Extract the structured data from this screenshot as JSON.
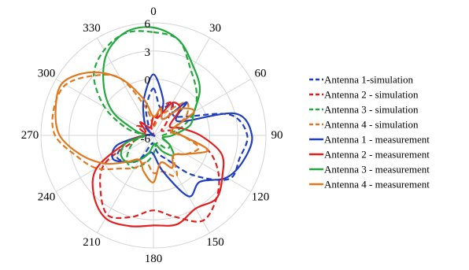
{
  "chart_data": {
    "type": "polar-line",
    "radial_axis": {
      "min": -6,
      "max": 6,
      "ticks": [
        -6,
        0,
        3,
        6
      ],
      "tick_labels": [
        "-6",
        "0",
        "3",
        "6"
      ]
    },
    "angular_axis": {
      "direction": "clockwise",
      "zero": "top",
      "ticks": [
        0,
        30,
        60,
        90,
        120,
        150,
        180,
        210,
        240,
        270,
        300,
        330
      ],
      "tick_labels": [
        "0",
        "30",
        "60",
        "90",
        "120",
        "150",
        "180",
        "210",
        "240",
        "270",
        "300",
        "330"
      ]
    },
    "grid": true,
    "legend_position": "right",
    "series": [
      {
        "name": "Antenna 1-simulation",
        "color": "#1f3fbf",
        "dash": "dashed",
        "theta": [
          0,
          15,
          30,
          45,
          60,
          75,
          90,
          105,
          120,
          135,
          150,
          165,
          180,
          195,
          210,
          225,
          240,
          255,
          270,
          285,
          300,
          315,
          330,
          345,
          360
        ],
        "r": [
          -1,
          -3,
          -2,
          -3,
          -2,
          2.5,
          4,
          3.5,
          3.3,
          0,
          -3,
          -4,
          -5,
          -5,
          -3,
          -2,
          -1.5,
          -3,
          -5,
          -6,
          -6,
          -5,
          -5,
          -3,
          -1
        ]
      },
      {
        "name": "Antenna 2 - simulation",
        "color": "#e02020",
        "dash": "dashed",
        "theta": [
          0,
          15,
          30,
          45,
          60,
          75,
          90,
          105,
          120,
          135,
          150,
          165,
          180,
          195,
          210,
          225,
          240,
          255,
          270,
          285,
          300,
          315,
          330,
          345,
          360
        ],
        "r": [
          -5,
          -3,
          -2,
          -4,
          -5,
          -4,
          -3,
          0,
          2,
          3.5,
          4.5,
          3,
          2,
          3,
          3.8,
          2,
          0,
          -4,
          -5,
          -5,
          -4,
          -5,
          -6,
          -5,
          -5
        ]
      },
      {
        "name": "Antenna 3 - simulation",
        "color": "#22a83c",
        "dash": "dashed",
        "theta": [
          0,
          15,
          30,
          45,
          60,
          75,
          90,
          105,
          120,
          135,
          150,
          165,
          180,
          195,
          210,
          225,
          240,
          255,
          270,
          285,
          300,
          315,
          330,
          345,
          360
        ],
        "r": [
          5,
          4.5,
          2,
          0.5,
          -1,
          -3,
          -5,
          -5,
          -4,
          -4,
          -5,
          -5,
          -4,
          -3,
          -2,
          -2,
          -3,
          -4,
          -5,
          -3,
          0,
          3,
          4.5,
          5.3,
          5
        ]
      },
      {
        "name": "Antenna 4 - simulation",
        "color": "#e07820",
        "dash": "dashed",
        "theta": [
          0,
          15,
          30,
          45,
          60,
          75,
          90,
          105,
          120,
          135,
          150,
          165,
          180,
          195,
          210,
          225,
          240,
          255,
          270,
          285,
          300,
          315,
          330,
          345,
          360
        ],
        "r": [
          -5,
          -4,
          -3,
          -1,
          -2,
          -4,
          -3,
          -1,
          -2,
          -3,
          -1,
          -2,
          -2,
          -3,
          -2,
          -1,
          1,
          2.5,
          4.5,
          5,
          4.8,
          3,
          1,
          -3,
          -5
        ]
      },
      {
        "name": "Antenna 1 - measurement",
        "color": "#1f3fbf",
        "dash": "solid",
        "theta": [
          0,
          15,
          30,
          45,
          60,
          75,
          90,
          105,
          120,
          135,
          150,
          165,
          180,
          195,
          210,
          225,
          240,
          255,
          270,
          285,
          300,
          315,
          330,
          345,
          360
        ],
        "r": [
          0.5,
          -2,
          -4,
          -1,
          -3,
          3,
          4.5,
          4,
          3,
          1,
          1.5,
          -2,
          -4,
          -4,
          -3,
          -2,
          -1,
          -2,
          -5,
          -6,
          -6,
          -5,
          -4,
          -2,
          0.5
        ]
      },
      {
        "name": "Antenna 2 - measurement",
        "color": "#e02020",
        "dash": "solid",
        "theta": [
          0,
          15,
          30,
          45,
          60,
          75,
          90,
          105,
          120,
          135,
          150,
          165,
          180,
          195,
          210,
          225,
          240,
          255,
          270,
          285,
          300,
          315,
          330,
          345,
          360
        ],
        "r": [
          -4,
          -4,
          -2,
          -2,
          -4,
          -3,
          -1,
          1.5,
          2.5,
          3.5,
          3,
          3.8,
          3.6,
          4,
          4.2,
          3,
          1,
          -3,
          -5,
          -5,
          -5,
          -4,
          -5,
          -5,
          -4
        ]
      },
      {
        "name": "Antenna 3 - measurement",
        "color": "#22a83c",
        "dash": "solid",
        "theta": [
          0,
          15,
          30,
          45,
          60,
          75,
          90,
          105,
          120,
          135,
          150,
          165,
          180,
          195,
          210,
          225,
          240,
          255,
          270,
          285,
          300,
          315,
          330,
          345,
          360
        ],
        "r": [
          5.5,
          4.5,
          2.5,
          1,
          -1,
          -2,
          -4,
          -5,
          -4,
          -3,
          -4,
          -5,
          -5,
          -4,
          -3,
          -2,
          -2,
          -3,
          -5,
          -4,
          -1,
          1.5,
          4,
          5.4,
          5.5
        ]
      },
      {
        "name": "Antenna 4 - measurement",
        "color": "#e07820",
        "dash": "solid",
        "theta": [
          0,
          15,
          30,
          45,
          60,
          75,
          90,
          105,
          120,
          135,
          150,
          165,
          180,
          195,
          210,
          225,
          240,
          255,
          270,
          285,
          300,
          315,
          330,
          345,
          360
        ],
        "r": [
          -4,
          -3,
          -4,
          -2,
          -1,
          -4,
          -3,
          0,
          -2,
          -3,
          -2,
          -3,
          -1,
          -2,
          -3,
          -2,
          0,
          2,
          4,
          4.8,
          5.2,
          3.5,
          1,
          -2,
          -4
        ]
      }
    ]
  }
}
